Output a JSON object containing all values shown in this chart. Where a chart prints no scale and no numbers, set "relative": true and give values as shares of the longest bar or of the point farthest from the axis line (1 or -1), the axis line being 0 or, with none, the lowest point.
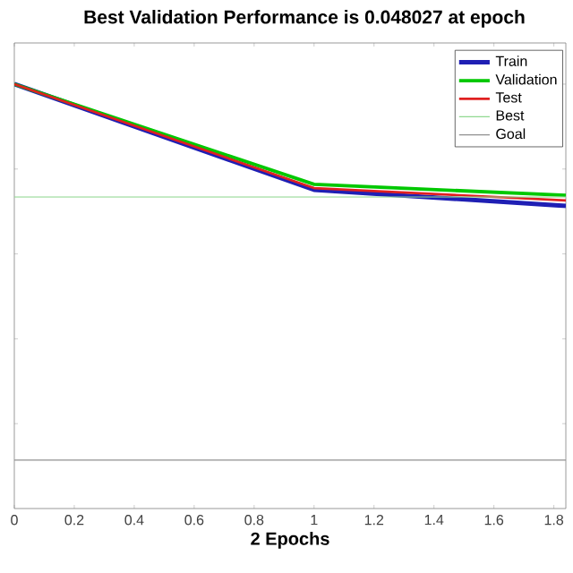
{
  "chart_data": {
    "type": "line",
    "title": "Best Validation Performance is 0.048027 at epoch",
    "xlabel": "2 Epochs",
    "x": [
      0,
      1,
      1.84
    ],
    "xlim": [
      0,
      1.84
    ],
    "xticks": [
      0,
      0.2,
      0.4,
      0.6,
      0.8,
      1,
      1.2,
      1.4,
      1.6,
      1.8
    ],
    "relative": true,
    "tick_labels": "x",
    "grid": false,
    "legend": "top right",
    "marker": "none",
    "line_style": "solid",
    "series": [
      {
        "name": "Train",
        "color": "#1f1fb4",
        "values": [
          1,
          0.751,
          0.713
        ]
      },
      {
        "name": "Validation",
        "color": "#00c800",
        "values": [
          1,
          0.764,
          0.738
        ]
      },
      {
        "name": "Test",
        "color": "#e02020",
        "values": [
          1,
          0.755,
          0.726
        ]
      }
    ],
    "ref_lines": [
      {
        "axis": "y",
        "value": 0.734,
        "label": "Best",
        "color": "#90d890"
      },
      {
        "axis": "y",
        "value": 0.114,
        "label": "Goal",
        "color": "#909090"
      }
    ]
  }
}
